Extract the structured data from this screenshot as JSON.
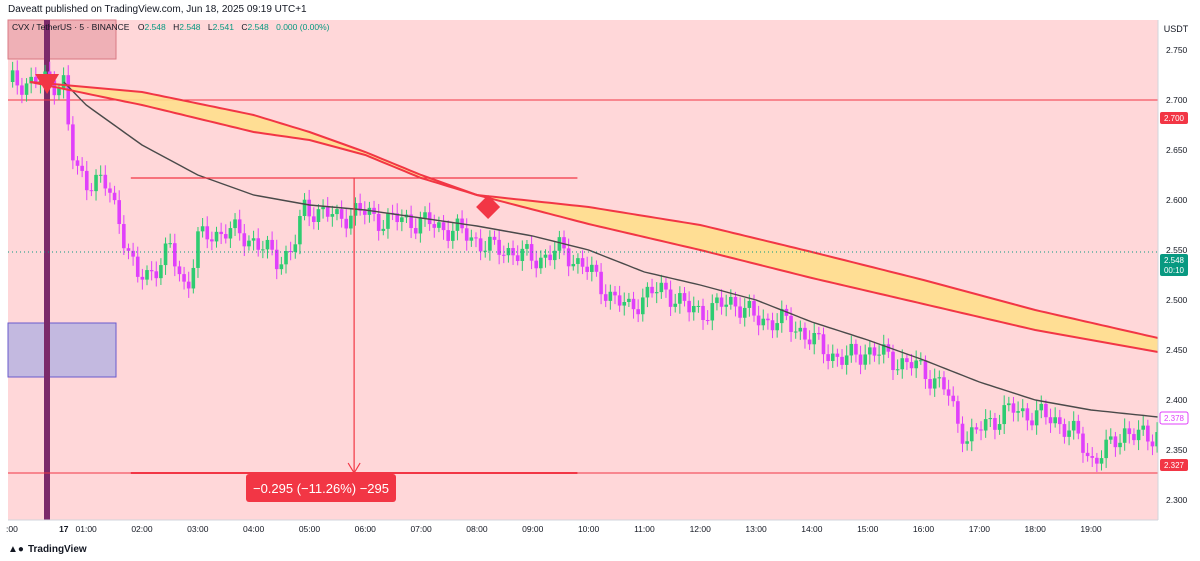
{
  "publisher_line": "Daveatt published on TradingView.com, Jun 18, 2025 09:19 UTC+1",
  "header": {
    "symbol": "CVX / TetherUS · 5 · BINANCE",
    "o_label": "O",
    "o_value": "2.548",
    "h_label": "H",
    "h_value": "2.548",
    "l_label": "L",
    "l_value": "2.541",
    "c_label": "C",
    "c_value": "2.548",
    "change": "0.000 (0.00%)"
  },
  "currency_label": "USDT",
  "price_badges": {
    "level_high": "2.700",
    "current_price": "2.548",
    "countdown": "00:10",
    "ma_value": "2.378",
    "level_low": "2.327"
  },
  "measure_label": "−0.295 (−11.26%) −295",
  "footer_brand": "TradingView",
  "colors": {
    "background": "#ffd7d9",
    "bull_candle": "#2ecc71",
    "bear_candle": "#e040fb",
    "line_red": "#f23645",
    "ma_gray": "#4a4a4a",
    "band_fill": "#ffdf8c",
    "badge_red": "#f23645",
    "badge_green": "#089981",
    "purple_bar": "#7b2a6a"
  },
  "chart_data": {
    "type": "candlestick",
    "title": "CVX / TetherUS · 5 · BINANCE",
    "ylim": [
      2.28,
      2.78
    ],
    "y_ticks": [
      "2.300",
      "2.350",
      "2.400",
      "2.450",
      "2.500",
      "2.550",
      "2.600",
      "2.650",
      "2.700",
      "2.750"
    ],
    "x_tick_labels": [
      ":00",
      "17",
      "01:00",
      "02:00",
      "03:00",
      "04:00",
      "05:00",
      "06:00",
      "07:00",
      "08:00",
      "09:00",
      "10:00",
      "11:00",
      "12:00",
      "13:00",
      "14:00",
      "15:00",
      "16:00",
      "17:00",
      "18:00",
      "19:00"
    ],
    "x_range_hours": [
      -0.4,
      20.2
    ],
    "horizontal_levels": [
      2.7,
      2.327
    ],
    "measure": {
      "from": 2.622,
      "to": 2.327,
      "change": -0.295,
      "percent": -11.26
    },
    "close_path": [
      [
        -0.4,
        2.718
      ],
      [
        0.2,
        2.718
      ],
      [
        0.6,
        2.718
      ],
      [
        0.65,
        2.69
      ],
      [
        0.7,
        2.66
      ],
      [
        0.8,
        2.63
      ],
      [
        1.0,
        2.62
      ],
      [
        1.2,
        2.62
      ],
      [
        1.4,
        2.61
      ],
      [
        1.6,
        2.58
      ],
      [
        1.75,
        2.55
      ],
      [
        1.9,
        2.52
      ],
      [
        2.2,
        2.53
      ],
      [
        2.5,
        2.55
      ],
      [
        2.8,
        2.51
      ],
      [
        3.0,
        2.56
      ],
      [
        3.5,
        2.57
      ],
      [
        4.0,
        2.56
      ],
      [
        4.4,
        2.54
      ],
      [
        4.7,
        2.55
      ],
      [
        4.8,
        2.57
      ],
      [
        4.9,
        2.59
      ],
      [
        5.2,
        2.59
      ],
      [
        5.5,
        2.58
      ],
      [
        5.8,
        2.59
      ],
      [
        6.3,
        2.58
      ],
      [
        6.8,
        2.58
      ],
      [
        7.2,
        2.575
      ],
      [
        7.6,
        2.57
      ],
      [
        8.0,
        2.56
      ],
      [
        8.3,
        2.55
      ],
      [
        8.6,
        2.55
      ],
      [
        9.0,
        2.54
      ],
      [
        9.5,
        2.55
      ],
      [
        9.9,
        2.535
      ],
      [
        10.3,
        2.51
      ],
      [
        10.7,
        2.49
      ],
      [
        11.0,
        2.505
      ],
      [
        11.4,
        2.51
      ],
      [
        11.8,
        2.49
      ],
      [
        12.2,
        2.49
      ],
      [
        12.6,
        2.5
      ],
      [
        13.0,
        2.48
      ],
      [
        13.4,
        2.48
      ],
      [
        13.8,
        2.47
      ],
      [
        14.2,
        2.45
      ],
      [
        14.6,
        2.44
      ],
      [
        15.0,
        2.45
      ],
      [
        15.5,
        2.44
      ],
      [
        16.0,
        2.43
      ],
      [
        16.4,
        2.41
      ],
      [
        16.6,
        2.38
      ],
      [
        16.8,
        2.36
      ],
      [
        17.2,
        2.38
      ],
      [
        17.6,
        2.39
      ],
      [
        18.0,
        2.385
      ],
      [
        18.4,
        2.38
      ],
      [
        18.8,
        2.36
      ],
      [
        19.0,
        2.34
      ],
      [
        19.3,
        2.35
      ],
      [
        19.6,
        2.37
      ],
      [
        20.0,
        2.36
      ],
      [
        20.2,
        2.37
      ]
    ],
    "series": [
      {
        "name": "",
        "type": "ma",
        "color": "#4a4a4a",
        "points": [
          [
            0.6,
            2.718
          ],
          [
            1.0,
            2.695
          ],
          [
            2.0,
            2.655
          ],
          [
            3.0,
            2.625
          ],
          [
            4.0,
            2.605
          ],
          [
            5.0,
            2.595
          ],
          [
            6.0,
            2.59
          ],
          [
            7.0,
            2.582
          ],
          [
            8.0,
            2.574
          ],
          [
            9.0,
            2.564
          ],
          [
            10.0,
            2.55
          ],
          [
            11.0,
            2.528
          ],
          [
            12.0,
            2.515
          ],
          [
            13.0,
            2.5
          ],
          [
            14.0,
            2.478
          ],
          [
            15.0,
            2.46
          ],
          [
            16.0,
            2.44
          ],
          [
            17.0,
            2.418
          ],
          [
            18.0,
            2.4
          ],
          [
            19.0,
            2.39
          ],
          [
            20.2,
            2.383
          ]
        ]
      },
      {
        "name": "",
        "type": "band_upper",
        "color": "#f23645",
        "points": [
          [
            0.0,
            2.718
          ],
          [
            2.0,
            2.708
          ],
          [
            4.0,
            2.685
          ],
          [
            5.0,
            2.668
          ],
          [
            6.0,
            2.648
          ],
          [
            7.0,
            2.625
          ],
          [
            8.0,
            2.605
          ],
          [
            10.0,
            2.576
          ],
          [
            12.0,
            2.55
          ],
          [
            14.0,
            2.522
          ],
          [
            16.0,
            2.496
          ],
          [
            18.0,
            2.47
          ],
          [
            20.2,
            2.448
          ]
        ]
      },
      {
        "name": "",
        "type": "band_lower",
        "color": "#f23645",
        "points": [
          [
            0.0,
            2.718
          ],
          [
            2.0,
            2.695
          ],
          [
            4.0,
            2.668
          ],
          [
            5.0,
            2.66
          ],
          [
            6.0,
            2.645
          ],
          [
            7.0,
            2.622
          ],
          [
            8.0,
            2.605
          ],
          [
            10.0,
            2.593
          ],
          [
            12.0,
            2.575
          ],
          [
            14.0,
            2.548
          ],
          [
            16.0,
            2.52
          ],
          [
            18.0,
            2.49
          ],
          [
            20.2,
            2.462
          ]
        ]
      }
    ],
    "grid": false,
    "legend": "none"
  }
}
